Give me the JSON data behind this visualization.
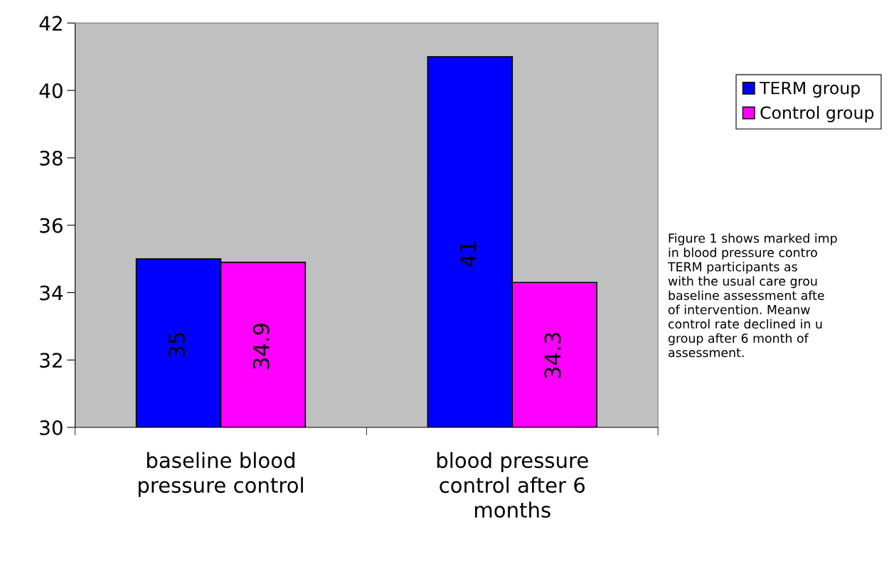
{
  "chart_data": {
    "type": "bar",
    "categories": [
      "baseline blood\npressure control",
      "blood pressure\ncontrol after 6\nmonths"
    ],
    "series": [
      {
        "name": "TERM group",
        "color": "#0000ff",
        "values": [
          35,
          41
        ]
      },
      {
        "name": "Control group",
        "color": "#ff00ff",
        "values": [
          34.9,
          34.3
        ]
      }
    ],
    "ylim": [
      30,
      42
    ],
    "yticks": [
      30,
      32,
      34,
      36,
      38,
      40,
      42
    ],
    "data_labels": true,
    "grid": false,
    "legend": "top right",
    "annotations": [
      "Figure 1 shows marked imp\nin blood pressure contro\nTERM participants as\nwith the usual care grou\nbaseline assessment afte\nof intervention. Meanw\ncontrol rate declined in u\ngroup after 6 month of\nassessment."
    ]
  }
}
